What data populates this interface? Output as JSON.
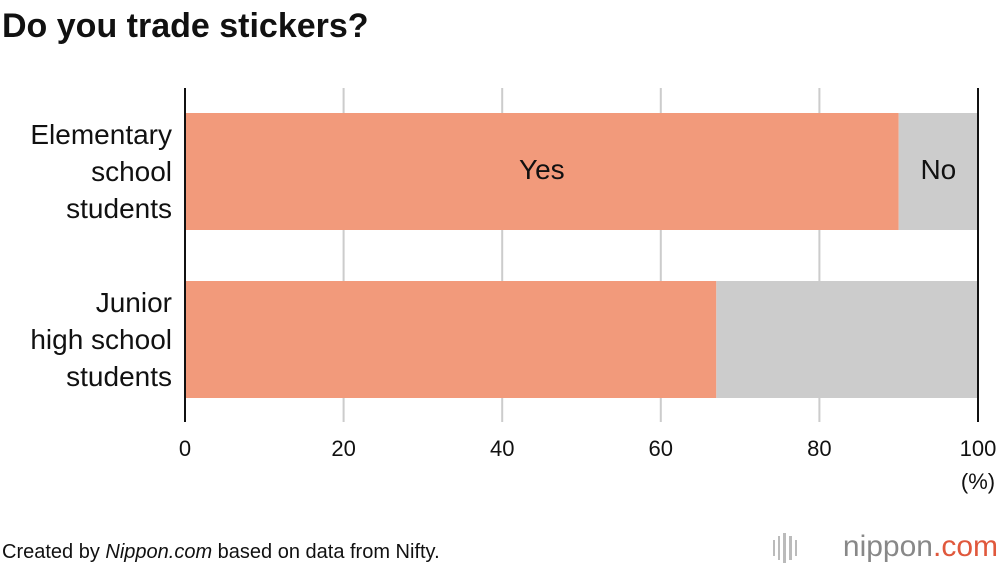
{
  "chart_data": {
    "type": "stacked_barh",
    "title": "Do you trade stickers?",
    "categories": [
      "Elementary\nschool\nstudents",
      "Junior\nhigh school\nstudents"
    ],
    "series": [
      {
        "name": "Yes",
        "color": "#f29a7b",
        "values": [
          90,
          67
        ]
      },
      {
        "name": "No",
        "color": "#cccccc",
        "values": [
          10,
          33
        ]
      }
    ],
    "xlim": [
      0,
      100
    ],
    "xticks": [
      0,
      20,
      40,
      60,
      80,
      100
    ],
    "x_unit": "(%)",
    "grid": true,
    "source": [
      "Created by ",
      "Nippon.com",
      " based on data from Nifty."
    ],
    "logo": [
      "nippon",
      ".com"
    ]
  }
}
